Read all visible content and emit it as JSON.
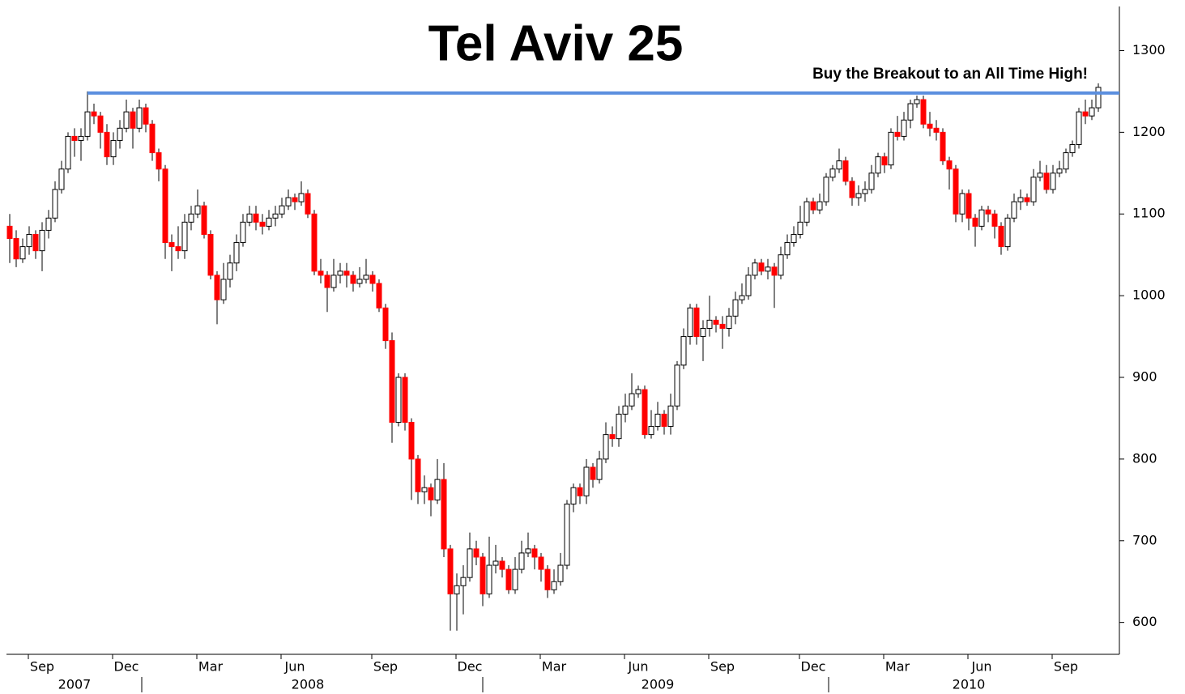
{
  "chart_data": {
    "type": "candlestick",
    "title": "Tel Aviv 25",
    "annotation": "Buy the Breakout to an All Time High!",
    "up_color": "#ffffff",
    "down_color": "#ff0000",
    "line_color": "#5b8fdf",
    "resistance": 1248,
    "ylim": [
      561,
      1354
    ],
    "yticks": [
      600,
      700,
      800,
      900,
      1000,
      1100,
      1200,
      1300
    ],
    "categories": [
      null,
      null,
      null,
      null,
      null,
      "Sep",
      null,
      null,
      null,
      null,
      null,
      null,
      null,
      null,
      null,
      null,
      null,
      null,
      "Dec",
      null,
      null,
      null,
      null,
      null,
      null,
      null,
      null,
      null,
      null,
      null,
      null,
      "Mar",
      null,
      null,
      null,
      null,
      null,
      null,
      null,
      null,
      null,
      null,
      null,
      null,
      "Jun",
      null,
      null,
      null,
      null,
      null,
      null,
      null,
      null,
      null,
      null,
      null,
      null,
      null,
      "Sep",
      null,
      null,
      null,
      null,
      null,
      null,
      null,
      null,
      null,
      null,
      null,
      null,
      "Dec",
      null,
      null,
      null,
      null,
      null,
      null,
      null,
      null,
      null,
      null,
      null,
      null,
      "Mar",
      null,
      null,
      null,
      null,
      null,
      null,
      null,
      null,
      null,
      null,
      null,
      null,
      "Jun",
      null,
      null,
      null,
      null,
      null,
      null,
      null,
      null,
      null,
      null,
      null,
      null,
      "Sep",
      null,
      null,
      null,
      null,
      null,
      null,
      null,
      null,
      null,
      null,
      null,
      null,
      null,
      "Dec",
      null,
      null,
      null,
      null,
      null,
      null,
      null,
      null,
      null,
      null,
      null,
      null,
      "Mar",
      null,
      null,
      null,
      null,
      null,
      null,
      null,
      null,
      null,
      null,
      null,
      null,
      "Jun",
      null,
      null,
      null,
      null,
      null,
      null,
      null,
      null,
      null,
      null,
      null,
      null,
      "Sep",
      null,
      null,
      null,
      null,
      null
    ],
    "years": [
      null,
      null,
      null,
      null,
      null,
      null,
      null,
      null,
      null,
      null,
      "2007",
      null,
      null,
      null,
      null,
      null,
      null,
      null,
      null,
      null,
      null,
      null,
      null,
      null,
      null,
      null,
      null,
      null,
      null,
      null,
      null,
      null,
      null,
      null,
      null,
      null,
      null,
      null,
      null,
      null,
      null,
      null,
      null,
      null,
      null,
      null,
      "2008",
      null,
      null,
      null,
      null,
      null,
      null,
      null,
      null,
      null,
      null,
      null,
      null,
      null,
      null,
      null,
      null,
      null,
      null,
      null,
      null,
      null,
      null,
      null,
      null,
      null,
      null,
      null,
      null,
      null,
      null,
      null,
      null,
      null,
      null,
      null,
      null,
      null,
      null,
      null,
      null,
      null,
      null,
      null,
      null,
      null,
      null,
      null,
      null,
      null,
      null,
      null,
      null,
      null,
      "2009",
      null,
      null,
      null,
      null,
      null,
      null,
      null,
      null,
      null,
      null,
      null,
      null,
      null,
      null,
      null,
      null,
      null,
      null,
      null,
      null,
      null,
      null,
      null,
      null,
      null,
      null,
      null,
      null,
      null,
      null,
      null,
      null,
      null,
      null,
      null,
      null,
      null,
      null,
      null,
      null,
      null,
      null,
      null,
      null,
      null,
      null,
      null,
      "2010",
      null,
      null,
      null,
      null,
      null,
      null,
      null,
      null,
      null,
      null,
      null,
      null,
      null,
      null,
      null,
      null,
      null,
      null,
      null,
      null
    ],
    "open": [
      1085,
      1070,
      1045,
      1060,
      1075,
      1055,
      1080,
      1095,
      1130,
      1155,
      1195,
      1190,
      1195,
      1225,
      1220,
      1200,
      1170,
      1190,
      1205,
      1225,
      1205,
      1230,
      1210,
      1175,
      1155,
      1065,
      1060,
      1055,
      1090,
      1100,
      1110,
      1075,
      1025,
      995,
      1020,
      1040,
      1065,
      1090,
      1100,
      1090,
      1085,
      1095,
      1100,
      1110,
      1120,
      1115,
      1125,
      1100,
      1030,
      1025,
      1010,
      1025,
      1030,
      1025,
      1015,
      1020,
      1025,
      1015,
      985,
      945,
      845,
      900,
      845,
      800,
      760,
      765,
      750,
      775,
      690,
      635,
      645,
      655,
      690,
      680,
      635,
      670,
      675,
      665,
      640,
      665,
      685,
      690,
      680,
      665,
      640,
      650,
      670,
      745,
      765,
      755,
      790,
      775,
      800,
      830,
      825,
      855,
      865,
      880,
      885,
      830,
      840,
      855,
      840,
      865,
      915,
      950,
      985,
      950,
      960,
      970,
      965,
      960,
      975,
      995,
      1000,
      1025,
      1040,
      1030,
      1035,
      1025,
      1050,
      1065,
      1075,
      1090,
      1115,
      1105,
      1115,
      1145,
      1155,
      1165,
      1140,
      1120,
      1125,
      1130,
      1150,
      1170,
      1160,
      1200,
      1195,
      1215,
      1235,
      1240,
      1210,
      1205,
      1200,
      1165,
      1155,
      1100,
      1125,
      1095,
      1085,
      1105,
      1100,
      1085,
      1060,
      1095,
      1115,
      1120,
      1115,
      1145,
      1150,
      1130,
      1150,
      1155,
      1175,
      1185,
      1225,
      1220,
      1230
    ],
    "high": [
      1100,
      1080,
      1070,
      1085,
      1080,
      1090,
      1105,
      1140,
      1165,
      1200,
      1205,
      1205,
      1250,
      1235,
      1225,
      1210,
      1200,
      1215,
      1240,
      1230,
      1240,
      1235,
      1215,
      1180,
      1160,
      1075,
      1085,
      1100,
      1110,
      1130,
      1115,
      1080,
      1030,
      1040,
      1050,
      1075,
      1100,
      1110,
      1110,
      1100,
      1105,
      1110,
      1120,
      1130,
      1125,
      1140,
      1130,
      1105,
      1045,
      1030,
      1045,
      1040,
      1040,
      1030,
      1035,
      1045,
      1030,
      1020,
      990,
      955,
      905,
      905,
      850,
      805,
      780,
      770,
      800,
      795,
      695,
      660,
      670,
      710,
      700,
      685,
      705,
      695,
      680,
      670,
      680,
      700,
      710,
      695,
      685,
      670,
      665,
      685,
      750,
      770,
      770,
      800,
      795,
      810,
      845,
      840,
      865,
      880,
      905,
      890,
      890,
      860,
      870,
      860,
      880,
      920,
      960,
      990,
      990,
      970,
      1000,
      975,
      975,
      985,
      1005,
      1015,
      1035,
      1045,
      1045,
      1045,
      1040,
      1060,
      1075,
      1085,
      1110,
      1120,
      1120,
      1125,
      1150,
      1160,
      1180,
      1170,
      1145,
      1135,
      1140,
      1160,
      1175,
      1175,
      1205,
      1220,
      1225,
      1240,
      1245,
      1245,
      1225,
      1215,
      1205,
      1170,
      1160,
      1130,
      1130,
      1100,
      1110,
      1110,
      1105,
      1090,
      1100,
      1125,
      1130,
      1125,
      1155,
      1165,
      1160,
      1160,
      1165,
      1180,
      1190,
      1230,
      1240,
      1240,
      1260
    ],
    "low": [
      1040,
      1035,
      1040,
      1050,
      1045,
      1030,
      1070,
      1090,
      1125,
      1150,
      1170,
      1165,
      1190,
      1210,
      1180,
      1160,
      1160,
      1180,
      1200,
      1180,
      1200,
      1200,
      1165,
      1140,
      1045,
      1030,
      1045,
      1045,
      1080,
      1095,
      1070,
      1020,
      965,
      990,
      1010,
      1030,
      1060,
      1085,
      1080,
      1075,
      1080,
      1085,
      1095,
      1105,
      1105,
      1110,
      1095,
      1025,
      1015,
      980,
      1005,
      1015,
      1010,
      1005,
      1010,
      1015,
      1005,
      980,
      935,
      820,
      840,
      835,
      750,
      745,
      745,
      730,
      745,
      680,
      590,
      590,
      610,
      650,
      670,
      620,
      630,
      660,
      655,
      635,
      635,
      660,
      680,
      665,
      650,
      630,
      635,
      645,
      665,
      735,
      745,
      745,
      765,
      770,
      795,
      815,
      815,
      845,
      860,
      875,
      825,
      825,
      835,
      830,
      830,
      860,
      910,
      940,
      940,
      920,
      950,
      955,
      935,
      950,
      965,
      990,
      995,
      1020,
      1025,
      1020,
      985,
      1020,
      1045,
      1060,
      1070,
      1085,
      1100,
      1100,
      1110,
      1140,
      1150,
      1135,
      1110,
      1110,
      1115,
      1125,
      1145,
      1150,
      1155,
      1190,
      1190,
      1205,
      1230,
      1205,
      1195,
      1190,
      1160,
      1130,
      1090,
      1090,
      1080,
      1060,
      1080,
      1090,
      1070,
      1050,
      1055,
      1090,
      1105,
      1110,
      1110,
      1140,
      1125,
      1125,
      1145,
      1150,
      1170,
      1180,
      1210,
      1215,
      1225
    ],
    "close": [
      1070,
      1045,
      1060,
      1075,
      1055,
      1080,
      1095,
      1130,
      1155,
      1195,
      1190,
      1195,
      1225,
      1220,
      1200,
      1170,
      1190,
      1205,
      1225,
      1205,
      1230,
      1210,
      1175,
      1155,
      1065,
      1060,
      1055,
      1090,
      1100,
      1110,
      1075,
      1025,
      995,
      1020,
      1040,
      1065,
      1090,
      1100,
      1090,
      1085,
      1095,
      1100,
      1110,
      1120,
      1115,
      1125,
      1100,
      1030,
      1025,
      1010,
      1025,
      1030,
      1025,
      1015,
      1020,
      1025,
      1015,
      985,
      945,
      845,
      900,
      845,
      800,
      760,
      765,
      750,
      775,
      690,
      635,
      645,
      655,
      690,
      680,
      635,
      670,
      675,
      665,
      640,
      665,
      685,
      690,
      680,
      665,
      640,
      650,
      670,
      745,
      765,
      755,
      790,
      775,
      800,
      830,
      825,
      855,
      865,
      880,
      885,
      830,
      840,
      855,
      840,
      865,
      915,
      950,
      985,
      950,
      960,
      970,
      965,
      960,
      975,
      995,
      1000,
      1025,
      1040,
      1030,
      1035,
      1025,
      1050,
      1065,
      1075,
      1090,
      1115,
      1105,
      1115,
      1145,
      1155,
      1165,
      1140,
      1120,
      1125,
      1130,
      1150,
      1170,
      1160,
      1200,
      1195,
      1215,
      1235,
      1240,
      1210,
      1205,
      1200,
      1165,
      1155,
      1100,
      1125,
      1095,
      1085,
      1105,
      1100,
      1085,
      1060,
      1095,
      1115,
      1120,
      1115,
      1145,
      1150,
      1130,
      1150,
      1155,
      1175,
      1185,
      1225,
      1220,
      1230,
      1255
    ]
  }
}
